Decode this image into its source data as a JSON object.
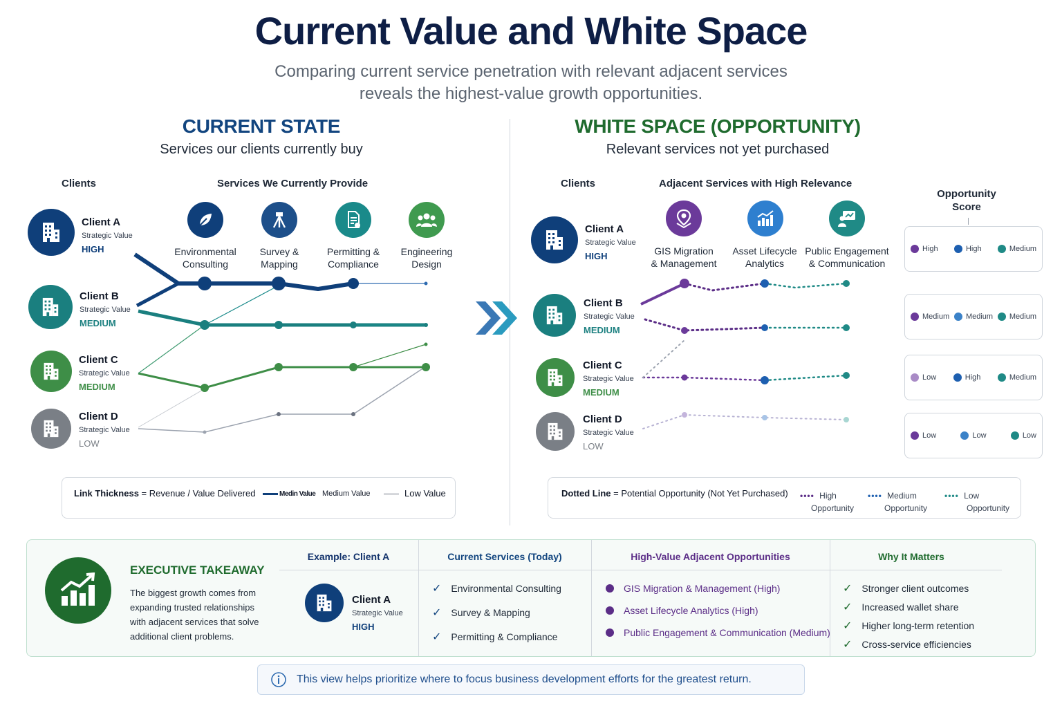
{
  "title": "Current Value and White Space",
  "subtitle_line1": "Comparing current service penetration with relevant adjacent services",
  "subtitle_line2": "reveals the highest-value growth opportunities.",
  "left": {
    "title": "CURRENT STATE",
    "subtitle": "Services our clients currently buy",
    "clients_header": "Clients",
    "services_header": "Services We Currently Provide",
    "services": [
      {
        "line1": "Environmental",
        "line2": "Consulting",
        "icon": "leaf-icon",
        "color": "#0f3f7a"
      },
      {
        "line1": "Survey &",
        "line2": "Mapping",
        "icon": "survey-tripod-icon",
        "color": "#1d4f8a"
      },
      {
        "line1": "Permitting &",
        "line2": "Compliance",
        "icon": "permit-document-icon",
        "color": "#1a8a8a"
      },
      {
        "line1": "Engineering",
        "line2": "Design",
        "icon": "team-icon",
        "color": "#3f9a4f"
      }
    ],
    "legend": {
      "label_bold": "Link Thickness",
      "label_rest": " = Revenue / Value Delivered",
      "items": [
        "Medin Value",
        "Medium Value",
        "Low Value"
      ]
    }
  },
  "clients": [
    {
      "name": "Client A",
      "sv_label": "Strategic Value",
      "level": "HIGH",
      "color": "#0f3f7a",
      "level_color": "#0f3f7a"
    },
    {
      "name": "Client B",
      "sv_label": "Strategic Value",
      "level": "MEDIUM",
      "color": "#1a7f7f",
      "level_color": "#1a7f7f"
    },
    {
      "name": "Client C",
      "sv_label": "Strategic Value",
      "level": "MEDIUM",
      "color": "#3e8e47",
      "level_color": "#3e8e47"
    },
    {
      "name": "Client D",
      "sv_label": "Strategic Value",
      "level": "LOW",
      "color": "#7a7f86",
      "level_color": "#7a7f86"
    }
  ],
  "right": {
    "title": "WHITE SPACE (OPPORTUNITY)",
    "subtitle": "Relevant services not yet purchased",
    "clients_header": "Clients",
    "services_header": "Adjacent Services with High Relevance",
    "score_header_line1": "Opportunity",
    "score_header_line2": "Score",
    "services": [
      {
        "line1": "GIS Migration",
        "line2": "& Management",
        "icon": "map-pin-icon",
        "color": "#6b3a9a"
      },
      {
        "line1": "Asset Lifecycle",
        "line2": "Analytics",
        "icon": "bar-chart-icon",
        "color": "#2e7fcf"
      },
      {
        "line1": "Public Engagement",
        "line2": "& Communication",
        "icon": "presentation-icon",
        "color": "#1f8a86"
      }
    ],
    "scores": [
      [
        {
          "label": "High",
          "color": "#6b3a9a"
        },
        {
          "label": "High",
          "color": "#1d5fb0"
        },
        {
          "label": "Medium",
          "color": "#1f8a86"
        }
      ],
      [
        {
          "label": "Medium",
          "color": "#6b3a9a"
        },
        {
          "label": "Medium",
          "color": "#3b82c8"
        },
        {
          "label": "Medium",
          "color": "#1f8a86"
        }
      ],
      [
        {
          "label": "Low",
          "color": "#a98bc6"
        },
        {
          "label": "High",
          "color": "#1d5fb0"
        },
        {
          "label": "Medium",
          "color": "#1f8a86"
        }
      ],
      [
        {
          "label": "Low",
          "color": "#6b3a9a"
        },
        {
          "label": "Low",
          "color": "#3b82c8"
        },
        {
          "label": "Low",
          "color": "#1f8a86"
        }
      ]
    ],
    "legend": {
      "label_bold": "Dotted Line",
      "label_rest": " = Potential Opportunity (Not Yet Purchased)",
      "items": [
        {
          "l1": "High",
          "l2": "Opportunity",
          "color": "#5b2d87"
        },
        {
          "l1": "Medium",
          "l2": "Opportunity",
          "color": "#1d5fb0"
        },
        {
          "l1": "Low",
          "l2": "Opportunity",
          "color": "#1f8a86"
        }
      ]
    }
  },
  "exec": {
    "title": "EXECUTIVE TAKEAWAY",
    "text_lines": [
      "The biggest growth comes from",
      "expanding trusted relationships",
      "with adjacent services that solve",
      "additional client problems."
    ],
    "col_example": "Example: Client A",
    "col_current": "Current Services (Today)",
    "col_adjacent": "High-Value Adjacent Opportunities",
    "col_why": "Why It Matters",
    "example_client": {
      "name": "Client A",
      "sv_label": "Strategic Value",
      "level": "HIGH"
    },
    "current_services": [
      "Environmental Consulting",
      "Survey & Mapping",
      "Permitting & Compliance"
    ],
    "adjacent": [
      "GIS Migration & Management (High)",
      "Asset Lifecycle Analytics (High)",
      "Public Engagement & Communication (Medium)"
    ],
    "why": [
      "Stronger client outcomes",
      "Increased wallet share",
      "Higher long-term retention",
      "Cross-service efficiencies"
    ]
  },
  "info": "This view helps prioritize where to focus business development efforts for the greatest return."
}
